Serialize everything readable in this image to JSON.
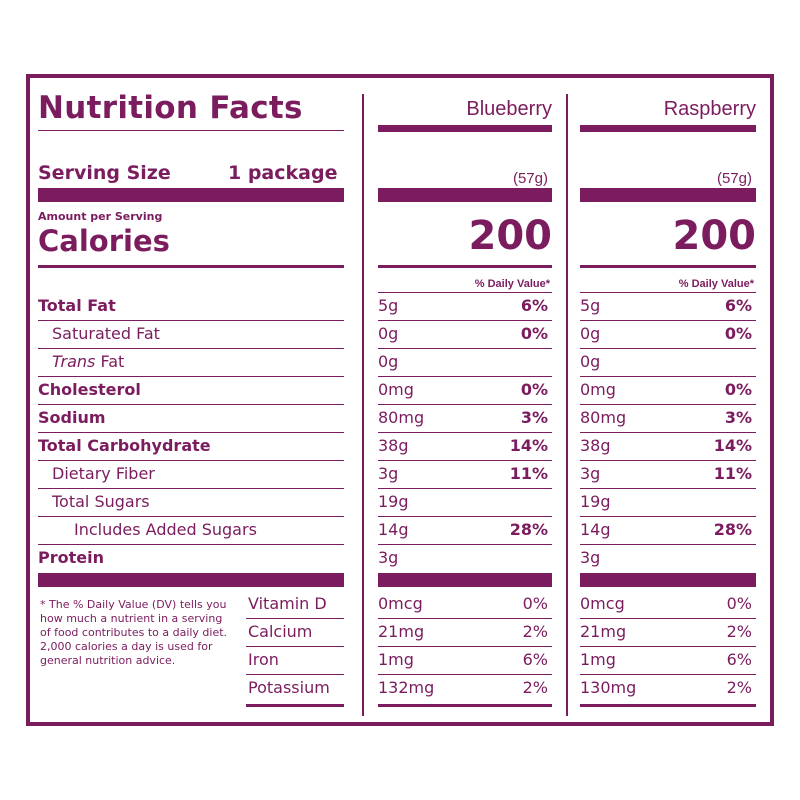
{
  "panel": {
    "title": "Nutrition Facts",
    "serving_size_label": "Serving Size",
    "serving_size_value": "1 package",
    "amount_per_serving": "Amount per Serving",
    "calories_label": "Calories",
    "dv_header": "% Daily Value*",
    "columns": [
      {
        "flavor": "Blueberry",
        "weight": "(57g)",
        "calories": "200",
        "nutrients": [
          {
            "amount": "5g",
            "dv": "6%"
          },
          {
            "amount": "0g",
            "dv": "0%"
          },
          {
            "amount": "0g",
            "dv": ""
          },
          {
            "amount": "0mg",
            "dv": "0%"
          },
          {
            "amount": "80mg",
            "dv": "3%"
          },
          {
            "amount": "38g",
            "dv": "14%"
          },
          {
            "amount": "3g",
            "dv": "11%"
          },
          {
            "amount": "19g",
            "dv": ""
          },
          {
            "amount": "14g",
            "dv": "28%"
          },
          {
            "amount": "3g",
            "dv": ""
          }
        ],
        "vitamins": [
          {
            "amount": "0mcg",
            "dv": "0%"
          },
          {
            "amount": "21mg",
            "dv": "2%"
          },
          {
            "amount": "1mg",
            "dv": "6%"
          },
          {
            "amount": "132mg",
            "dv": "2%"
          }
        ]
      },
      {
        "flavor": "Raspberry",
        "weight": "(57g)",
        "calories": "200",
        "nutrients": [
          {
            "amount": "5g",
            "dv": "6%"
          },
          {
            "amount": "0g",
            "dv": "0%"
          },
          {
            "amount": "0g",
            "dv": ""
          },
          {
            "amount": "0mg",
            "dv": "0%"
          },
          {
            "amount": "80mg",
            "dv": "3%"
          },
          {
            "amount": "38g",
            "dv": "14%"
          },
          {
            "amount": "3g",
            "dv": "11%"
          },
          {
            "amount": "19g",
            "dv": ""
          },
          {
            "amount": "14g",
            "dv": "28%"
          },
          {
            "amount": "3g",
            "dv": ""
          }
        ],
        "vitamins": [
          {
            "amount": "0mcg",
            "dv": "0%"
          },
          {
            "amount": "21mg",
            "dv": "2%"
          },
          {
            "amount": "1mg",
            "dv": "6%"
          },
          {
            "amount": "130mg",
            "dv": "2%"
          }
        ]
      }
    ],
    "nutrient_labels": [
      {
        "pre": "",
        "label": "Total Fat",
        "bold": true,
        "indent": 0
      },
      {
        "pre": "",
        "label": "Saturated Fat",
        "bold": false,
        "indent": 1
      },
      {
        "pre": "Trans",
        "label": " Fat",
        "bold": false,
        "indent": 1
      },
      {
        "pre": "",
        "label": "Cholesterol",
        "bold": true,
        "indent": 0
      },
      {
        "pre": "",
        "label": "Sodium",
        "bold": true,
        "indent": 0
      },
      {
        "pre": "",
        "label": "Total Carbohydrate",
        "bold": true,
        "indent": 0
      },
      {
        "pre": "",
        "label": "Dietary Fiber",
        "bold": false,
        "indent": 1
      },
      {
        "pre": "",
        "label": "Total Sugars",
        "bold": false,
        "indent": 1
      },
      {
        "pre": "",
        "label": "Includes Added Sugars",
        "bold": false,
        "indent": 2
      },
      {
        "pre": "",
        "label": "Protein",
        "bold": true,
        "indent": 0
      }
    ],
    "vitamin_labels": [
      "Vitamin D",
      "Calcium",
      "Iron",
      "Potassium"
    ],
    "footnote": "* The % Daily Value (DV) tells you how much a nutrient in a serving of food contributes to a daily diet. 2,000 calories a day is used for general nutrition advice.",
    "colors": {
      "brand": "#7b1c5e",
      "background": "#ffffff"
    }
  }
}
